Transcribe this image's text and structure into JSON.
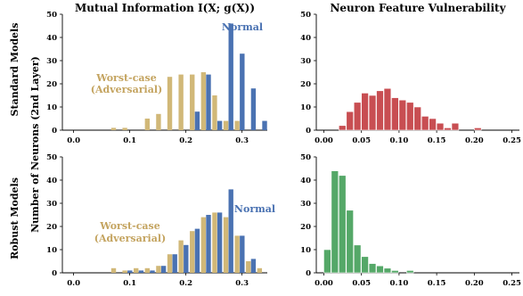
{
  "figure": {
    "row_labels": [
      "Standard Models",
      "Robust Models"
    ],
    "shared_ylabel": "Number of Neurons (2nd Layer)",
    "colors": {
      "normal": "#4a72b2",
      "worst": "#d1b878",
      "vuln_standard": "#c84e52",
      "vuln_robust": "#55a868",
      "normal_text": "#4a72b2",
      "worst_text": "#c4a460"
    }
  },
  "chart_data": [
    {
      "type": "bar",
      "panel": "mi-standard",
      "title": "Mutual Information I(X; g(X))",
      "xlabel": "",
      "ylabel": "",
      "xlim": [
        -0.02,
        0.345
      ],
      "ylim": [
        0,
        50
      ],
      "xticks": [
        "0.0",
        "0.1",
        "0.2",
        "0.3"
      ],
      "yticks": [
        "0",
        "10",
        "20",
        "30",
        "40",
        "50"
      ],
      "bin_width": 0.0095,
      "series": [
        {
          "name": "Worst-case (Adversarial)",
          "color_key": "worst",
          "x": [
            0.067,
            0.087,
            0.107,
            0.127,
            0.147,
            0.167,
            0.187,
            0.207,
            0.227,
            0.247,
            0.267,
            0.287,
            0.307,
            0.327
          ],
          "values": [
            1,
            1,
            0,
            5,
            7,
            23,
            24,
            24,
            25,
            15,
            4,
            4,
            0,
            0
          ]
        },
        {
          "name": "Normal",
          "color_key": "normal",
          "x": [
            0.196,
            0.216,
            0.236,
            0.256,
            0.276,
            0.296,
            0.316,
            0.336
          ],
          "values": [
            0,
            8,
            24,
            4,
            46,
            33,
            18,
            4
          ]
        }
      ],
      "annotations": [
        {
          "text": "Normal",
          "color_key": "normal_text"
        },
        {
          "text": "Worst-case",
          "color_key": "worst_text"
        },
        {
          "text": "(Adversarial)",
          "color_key": "worst_text"
        }
      ]
    },
    {
      "type": "bar",
      "panel": "vuln-standard",
      "title": "Neuron Feature Vulnerability",
      "xlabel": "",
      "ylabel": "",
      "xlim": [
        -0.01,
        0.26
      ],
      "ylim": [
        0,
        50
      ],
      "xticks": [
        "0.00",
        "0.05",
        "0.10",
        "0.15",
        "0.20",
        "0.25"
      ],
      "yticks": [
        "0",
        "10",
        "20",
        "30",
        "40",
        "50"
      ],
      "bin_width": 0.01,
      "series": [
        {
          "name": "",
          "color_key": "vuln_standard",
          "x": [
            0.02,
            0.03,
            0.04,
            0.05,
            0.06,
            0.07,
            0.08,
            0.09,
            0.1,
            0.11,
            0.12,
            0.13,
            0.14,
            0.15,
            0.16,
            0.17,
            0.18,
            0.19,
            0.2,
            0.21
          ],
          "values": [
            2,
            8,
            12,
            16,
            15,
            17,
            18,
            14,
            13,
            12,
            10,
            6,
            5,
            3,
            1,
            3,
            0,
            0,
            1,
            0
          ]
        }
      ]
    },
    {
      "type": "bar",
      "panel": "mi-robust",
      "title": "",
      "xlabel": "",
      "ylabel": "",
      "xlim": [
        -0.02,
        0.345
      ],
      "ylim": [
        0,
        50
      ],
      "xticks": [
        "0.0",
        "0.1",
        "0.2",
        "0.3"
      ],
      "yticks": [
        "0",
        "10",
        "20",
        "30",
        "40",
        "50"
      ],
      "bin_width": 0.0095,
      "series": [
        {
          "name": "Worst-case (Adversarial)",
          "color_key": "worst",
          "x": [
            0.067,
            0.087,
            0.107,
            0.127,
            0.147,
            0.167,
            0.187,
            0.207,
            0.227,
            0.247,
            0.267,
            0.287,
            0.307,
            0.327
          ],
          "values": [
            2,
            1,
            2,
            2,
            3,
            8,
            14,
            18,
            24,
            26,
            24,
            16,
            5,
            2
          ]
        },
        {
          "name": "Normal",
          "color_key": "normal",
          "x": [
            0.096,
            0.116,
            0.136,
            0.156,
            0.176,
            0.196,
            0.216,
            0.236,
            0.256,
            0.276,
            0.296,
            0.316,
            0.336
          ],
          "values": [
            1,
            1,
            1,
            3,
            8,
            12,
            19,
            25,
            26,
            36,
            16,
            6,
            0
          ]
        }
      ],
      "annotations": [
        {
          "text": "Normal",
          "color_key": "normal_text"
        },
        {
          "text": "Worst-case",
          "color_key": "worst_text"
        },
        {
          "text": "(Adversarial)",
          "color_key": "worst_text"
        }
      ]
    },
    {
      "type": "bar",
      "panel": "vuln-robust",
      "title": "",
      "xlabel": "",
      "ylabel": "",
      "xlim": [
        -0.01,
        0.26
      ],
      "ylim": [
        0,
        50
      ],
      "xticks": [
        "0.00",
        "0.05",
        "0.10",
        "0.15",
        "0.20",
        "0.25"
      ],
      "yticks": [
        "0",
        "10",
        "20",
        "30",
        "40",
        "50"
      ],
      "bin_width": 0.01,
      "series": [
        {
          "name": "",
          "color_key": "vuln_robust",
          "x": [
            0.0,
            0.01,
            0.02,
            0.03,
            0.04,
            0.05,
            0.06,
            0.07,
            0.08,
            0.09,
            0.1,
            0.11,
            0.12,
            0.13
          ],
          "values": [
            10,
            44,
            42,
            27,
            12,
            7,
            4,
            3,
            2,
            1,
            0,
            1,
            0,
            0
          ]
        }
      ]
    }
  ]
}
